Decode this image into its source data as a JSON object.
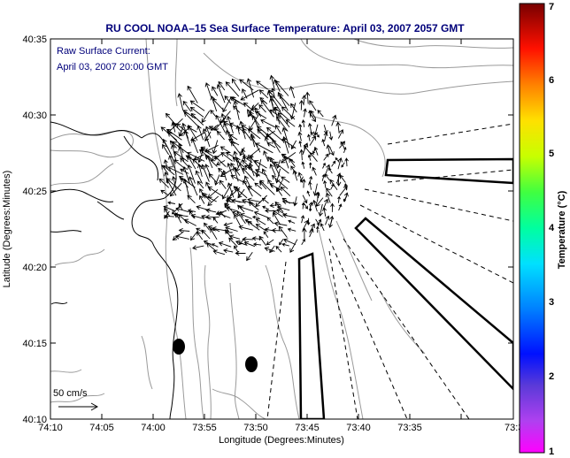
{
  "title": "RU COOL  NOAA–15  Sea Surface Temperature:  April 03, 2007 2057 GMT",
  "legend": {
    "line1": "Raw Surface Current:",
    "line2": "April 03, 2007 20:00 GMT"
  },
  "scale": {
    "label": "50 cm/s"
  },
  "axes": {
    "xlabel": "Longitude (Degrees:Minutes)",
    "ylabel": "Latitude (Degrees:Minutes)",
    "x_ticks": [
      "74:10",
      "74:05",
      "74:00",
      "73:55",
      "73:50",
      "73:45",
      "73:40",
      "73:35",
      "73:3"
    ],
    "y_ticks": [
      "40:35",
      "40:30",
      "40:25",
      "40:20",
      "40:15",
      "40:10"
    ]
  },
  "colorbar": {
    "label": "Temperature (°C)",
    "ticks": [
      "7",
      "6",
      "5",
      "4",
      "3",
      "2",
      "1"
    ]
  },
  "colors": {
    "title": "#00007a",
    "frame": "#000000",
    "contour": "#9a9a9a"
  }
}
